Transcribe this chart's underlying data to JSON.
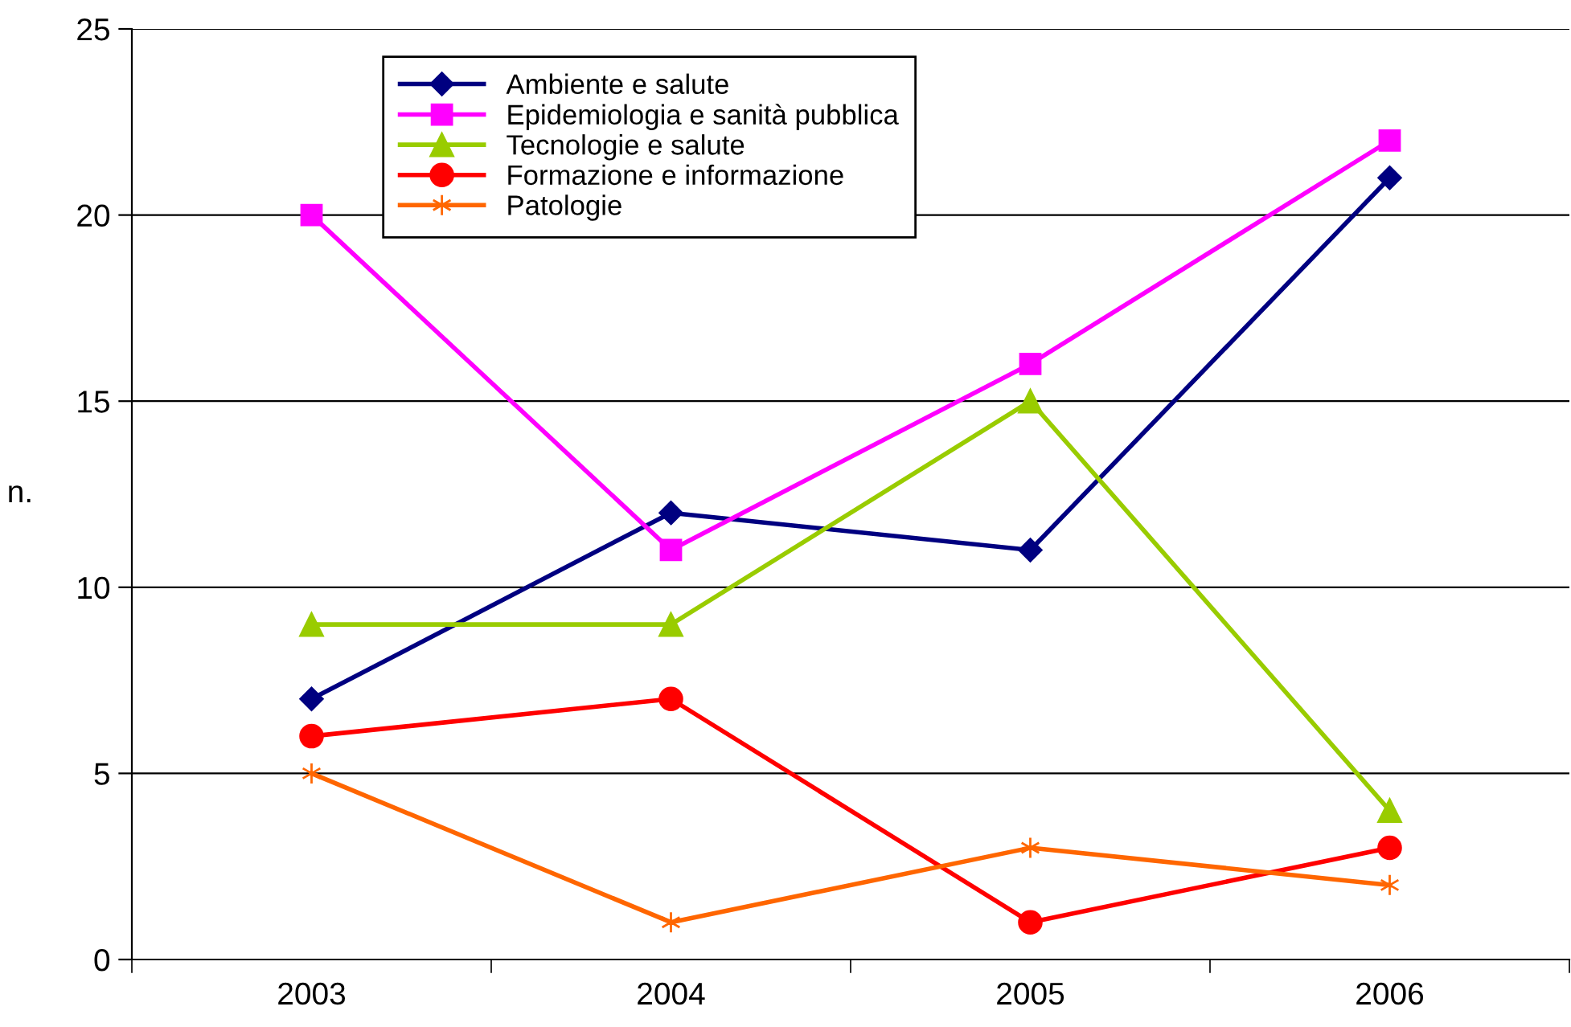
{
  "chart_data": {
    "type": "line",
    "ylabel": "n.",
    "categories": [
      "2003",
      "2004",
      "2005",
      "2006"
    ],
    "series": [
      {
        "name": "Ambiente e salute",
        "color": "#000080",
        "marker": "diamond",
        "values": [
          7,
          12,
          11,
          21
        ]
      },
      {
        "name": "Epidemiologia e sanità pubblica",
        "color": "#ff00ff",
        "marker": "square",
        "values": [
          20,
          11,
          16,
          22
        ]
      },
      {
        "name": "Tecnologie e salute",
        "color": "#99cc00",
        "marker": "triangle",
        "values": [
          9,
          9,
          15,
          4
        ]
      },
      {
        "name": "Formazione e informazione",
        "color": "#ff0000",
        "marker": "circle",
        "values": [
          6,
          7,
          1,
          3
        ]
      },
      {
        "name": "Patologie",
        "color": "#ff6600",
        "marker": "cross",
        "values": [
          5,
          1,
          3,
          2
        ]
      }
    ],
    "ylim": [
      0,
      25
    ],
    "yticks": [
      0,
      5,
      10,
      15,
      20,
      25
    ],
    "grid": "y",
    "legend": "top",
    "line_style": "solid"
  }
}
